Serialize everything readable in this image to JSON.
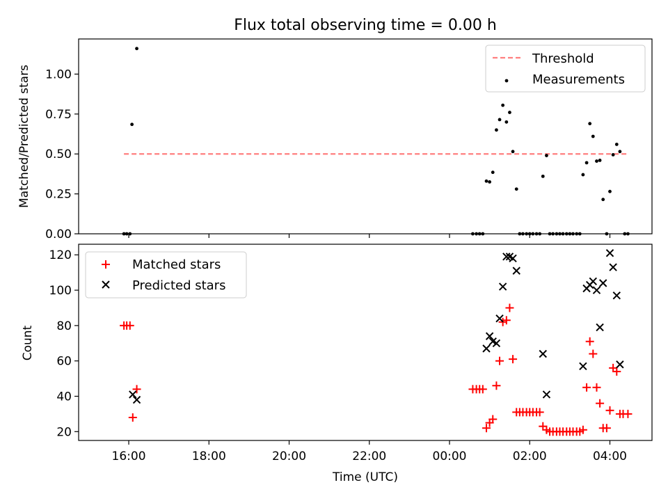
{
  "chart_data": [
    {
      "type": "scatter",
      "title": "Flux total observing time = 0.00 h",
      "xlabel": "",
      "ylabel": "Matched/Predicted stars",
      "ylim": [
        0,
        1.22
      ],
      "yticks": [
        0,
        0.25,
        0.5,
        0.75,
        1.0
      ],
      "ytick_labels": [
        "0.00",
        "0.25",
        "0.50",
        "0.75",
        "1.00"
      ],
      "legend_position": "upper right",
      "grid": false,
      "colors": {
        "threshold": "#ff7f7f",
        "measurements": "#000000"
      },
      "series": [
        {
          "name": "Threshold",
          "kind": "dashed-line",
          "x": [
            15.88,
            28.45
          ],
          "y": [
            0.5,
            0.5
          ]
        },
        {
          "name": "Measurements",
          "kind": "dots",
          "points": [
            [
              15.88,
              0.0
            ],
            [
              15.95,
              0.0
            ],
            [
              16.03,
              0.0
            ],
            [
              16.08,
              0.685
            ],
            [
              16.2,
              1.16
            ],
            [
              24.58,
              0.0
            ],
            [
              24.67,
              0.0
            ],
            [
              24.75,
              0.0
            ],
            [
              24.83,
              0.0
            ],
            [
              24.92,
              0.33
            ],
            [
              25.0,
              0.325
            ],
            [
              25.08,
              0.385
            ],
            [
              25.17,
              0.65
            ],
            [
              25.25,
              0.715
            ],
            [
              25.33,
              0.805
            ],
            [
              25.42,
              0.7
            ],
            [
              25.5,
              0.76
            ],
            [
              25.58,
              0.515
            ],
            [
              25.67,
              0.28
            ],
            [
              25.75,
              0.0
            ],
            [
              25.83,
              0.0
            ],
            [
              25.92,
              0.0
            ],
            [
              26.0,
              0.0
            ],
            [
              26.08,
              0.0
            ],
            [
              26.17,
              0.0
            ],
            [
              26.25,
              0.0
            ],
            [
              26.33,
              0.36
            ],
            [
              26.42,
              0.49
            ],
            [
              26.5,
              0.0
            ],
            [
              26.58,
              0.0
            ],
            [
              26.67,
              0.0
            ],
            [
              26.75,
              0.0
            ],
            [
              26.83,
              0.0
            ],
            [
              26.92,
              0.0
            ],
            [
              27.0,
              0.0
            ],
            [
              27.08,
              0.0
            ],
            [
              27.17,
              0.0
            ],
            [
              27.25,
              0.0
            ],
            [
              27.33,
              0.37
            ],
            [
              27.42,
              0.445
            ],
            [
              27.5,
              0.69
            ],
            [
              27.58,
              0.61
            ],
            [
              27.67,
              0.455
            ],
            [
              27.75,
              0.46
            ],
            [
              27.83,
              0.215
            ],
            [
              27.92,
              0.0
            ],
            [
              28.0,
              0.265
            ],
            [
              28.08,
              0.495
            ],
            [
              28.17,
              0.56
            ],
            [
              28.25,
              0.515
            ],
            [
              28.37,
              0.0
            ],
            [
              28.45,
              0.0
            ]
          ]
        }
      ]
    },
    {
      "type": "scatter",
      "title": "",
      "xlabel": "Time (UTC)",
      "ylabel": "Count",
      "ylim": [
        15,
        126
      ],
      "yticks": [
        20,
        40,
        60,
        80,
        100,
        120
      ],
      "ytick_labels": [
        "20",
        "40",
        "60",
        "80",
        "100",
        "120"
      ],
      "xlim": [
        14.75,
        29.05
      ],
      "xticks": [
        16,
        18,
        20,
        22,
        24,
        26,
        28
      ],
      "xtick_labels": [
        "16:00",
        "18:00",
        "20:00",
        "22:00",
        "00:00",
        "02:00",
        "04:00"
      ],
      "legend_position": "upper left",
      "grid": false,
      "colors": {
        "matched": "#ff0000",
        "predicted": "#000000"
      },
      "series": [
        {
          "name": "Matched stars",
          "marker": "+",
          "points": [
            [
              15.88,
              80
            ],
            [
              15.95,
              80
            ],
            [
              16.03,
              80
            ],
            [
              16.1,
              28
            ],
            [
              16.2,
              44
            ],
            [
              24.58,
              44
            ],
            [
              24.67,
              44
            ],
            [
              24.75,
              44
            ],
            [
              24.83,
              44
            ],
            [
              24.92,
              22
            ],
            [
              25.0,
              25
            ],
            [
              25.08,
              27
            ],
            [
              25.17,
              46
            ],
            [
              25.25,
              60
            ],
            [
              25.33,
              82
            ],
            [
              25.42,
              83
            ],
            [
              25.5,
              90
            ],
            [
              25.58,
              61
            ],
            [
              25.67,
              31
            ],
            [
              25.75,
              31
            ],
            [
              25.83,
              31
            ],
            [
              25.92,
              31
            ],
            [
              26.0,
              31
            ],
            [
              26.08,
              31
            ],
            [
              26.17,
              31
            ],
            [
              26.25,
              31
            ],
            [
              26.33,
              23
            ],
            [
              26.42,
              21
            ],
            [
              26.5,
              20
            ],
            [
              26.58,
              20
            ],
            [
              26.67,
              20
            ],
            [
              26.75,
              20
            ],
            [
              26.83,
              20
            ],
            [
              26.92,
              20
            ],
            [
              27.0,
              20
            ],
            [
              27.08,
              20
            ],
            [
              27.17,
              20
            ],
            [
              27.25,
              20
            ],
            [
              27.33,
              21
            ],
            [
              27.42,
              45
            ],
            [
              27.5,
              71
            ],
            [
              27.58,
              64
            ],
            [
              27.67,
              45
            ],
            [
              27.75,
              36
            ],
            [
              27.83,
              22
            ],
            [
              27.92,
              22
            ],
            [
              28.0,
              32
            ],
            [
              28.08,
              56
            ],
            [
              28.17,
              54
            ],
            [
              28.25,
              30
            ],
            [
              28.33,
              30
            ],
            [
              28.45,
              30
            ]
          ]
        },
        {
          "name": "Predicted stars",
          "marker": "x",
          "points": [
            [
              16.1,
              41
            ],
            [
              16.2,
              38
            ],
            [
              24.92,
              67
            ],
            [
              25.0,
              74
            ],
            [
              25.08,
              71
            ],
            [
              25.17,
              70
            ],
            [
              25.25,
              84
            ],
            [
              25.33,
              102
            ],
            [
              25.42,
              119
            ],
            [
              25.5,
              119
            ],
            [
              25.58,
              118
            ],
            [
              25.67,
              111
            ],
            [
              26.33,
              64
            ],
            [
              26.42,
              41
            ],
            [
              27.33,
              57
            ],
            [
              27.42,
              101
            ],
            [
              27.5,
              103
            ],
            [
              27.58,
              105
            ],
            [
              27.67,
              100
            ],
            [
              27.75,
              79
            ],
            [
              27.83,
              104
            ],
            [
              28.0,
              121
            ],
            [
              28.08,
              113
            ],
            [
              28.17,
              97
            ],
            [
              28.25,
              58
            ]
          ]
        }
      ]
    }
  ]
}
